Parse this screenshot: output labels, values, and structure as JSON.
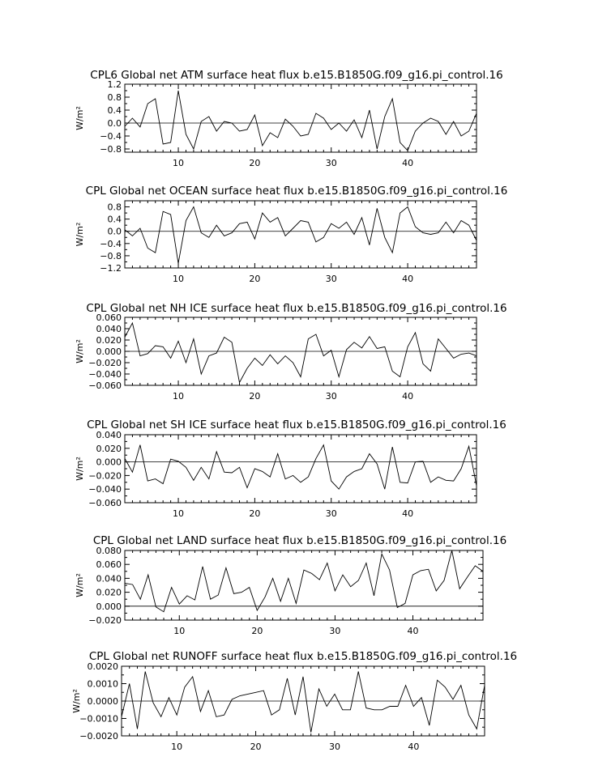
{
  "chart_data": [
    {
      "type": "line",
      "title": "CPL6 Global net ATM surface heat flux b.e15.B1850G.f09_g16.pi_control.16",
      "ylabel": "W/m²",
      "xlabel": "",
      "xlim": [
        3,
        49
      ],
      "ylim": [
        -0.9,
        1.2
      ],
      "yticks": [
        -0.8,
        -0.4,
        0.0,
        0.4,
        0.8,
        1.2
      ],
      "ytick_labels": [
        "−0.8",
        "−0.4",
        "0.0",
        "0.4",
        "0.8",
        "1.2"
      ],
      "xticks": [
        10,
        20,
        30,
        40
      ],
      "xtick_labels": [
        "10",
        "20",
        "30",
        "40"
      ],
      "zero_line": true,
      "x": [
        3,
        4,
        5,
        6,
        7,
        8,
        9,
        10,
        11,
        12,
        13,
        14,
        15,
        16,
        17,
        18,
        19,
        20,
        21,
        22,
        23,
        24,
        25,
        26,
        27,
        28,
        29,
        30,
        31,
        32,
        33,
        34,
        35,
        36,
        37,
        38,
        39,
        40,
        41,
        42,
        43,
        44,
        45,
        46,
        47,
        48,
        49
      ],
      "values": [
        -0.1,
        0.15,
        -0.12,
        0.6,
        0.75,
        -0.65,
        -0.6,
        1.0,
        -0.35,
        -0.8,
        0.05,
        0.2,
        -0.25,
        0.05,
        0.0,
        -0.25,
        -0.2,
        0.25,
        -0.7,
        -0.3,
        -0.45,
        0.12,
        -0.1,
        -0.4,
        -0.35,
        0.3,
        0.15,
        -0.2,
        0.0,
        -0.25,
        0.1,
        -0.45,
        0.4,
        -0.8,
        0.2,
        0.75,
        -0.6,
        -0.85,
        -0.25,
        0.0,
        0.15,
        0.05,
        -0.35,
        0.05,
        -0.4,
        -0.25,
        0.3
      ]
    },
    {
      "type": "line",
      "title": "CPL Global net OCEAN surface heat flux b.e15.B1850G.f09_g16.pi_control.16",
      "ylabel": "W/m²",
      "xlabel": "",
      "xlim": [
        3,
        49
      ],
      "ylim": [
        -1.2,
        1.0
      ],
      "yticks": [
        -1.2,
        -0.8,
        -0.4,
        0.0,
        0.4,
        0.8
      ],
      "ytick_labels": [
        "−1.2",
        "−0.8",
        "−0.4",
        "0.0",
        "0.4",
        "0.8"
      ],
      "xticks": [
        10,
        20,
        30,
        40
      ],
      "xtick_labels": [
        "10",
        "20",
        "30",
        "40"
      ],
      "zero_line": true,
      "x": [
        3,
        4,
        5,
        6,
        7,
        8,
        9,
        10,
        11,
        12,
        13,
        14,
        15,
        16,
        17,
        18,
        19,
        20,
        21,
        22,
        23,
        24,
        25,
        26,
        27,
        28,
        29,
        30,
        31,
        32,
        33,
        34,
        35,
        36,
        37,
        38,
        39,
        40,
        41,
        42,
        43,
        44,
        45,
        46,
        47,
        48,
        49
      ],
      "values": [
        0.05,
        -0.15,
        0.1,
        -0.55,
        -0.7,
        0.65,
        0.55,
        -1.05,
        0.35,
        0.8,
        -0.05,
        -0.2,
        0.2,
        -0.15,
        -0.05,
        0.25,
        0.3,
        -0.25,
        0.6,
        0.3,
        0.45,
        -0.15,
        0.1,
        0.35,
        0.3,
        -0.35,
        -0.2,
        0.25,
        0.1,
        0.3,
        -0.1,
        0.45,
        -0.45,
        0.75,
        -0.2,
        -0.7,
        0.6,
        0.8,
        0.15,
        -0.05,
        -0.1,
        -0.05,
        0.3,
        -0.05,
        0.35,
        0.2,
        -0.3
      ]
    },
    {
      "type": "line",
      "title": "CPL Global net NH ICE surface heat flux b.e15.B1850G.f09_g16.pi_control.16",
      "ylabel": "W/m²",
      "xlabel": "",
      "xlim": [
        3,
        49
      ],
      "ylim": [
        -0.06,
        0.06
      ],
      "yticks": [
        -0.06,
        -0.04,
        -0.02,
        0.0,
        0.02,
        0.04,
        0.06
      ],
      "ytick_labels": [
        "−0.060",
        "−0.040",
        "−0.020",
        "0.000",
        "0.020",
        "0.040",
        "0.060"
      ],
      "xticks": [
        10,
        20,
        30,
        40
      ],
      "xtick_labels": [
        "10",
        "20",
        "30",
        "40"
      ],
      "zero_line": true,
      "x": [
        3,
        4,
        5,
        6,
        7,
        8,
        9,
        10,
        11,
        12,
        13,
        14,
        15,
        16,
        17,
        18,
        19,
        20,
        21,
        22,
        23,
        24,
        25,
        26,
        27,
        28,
        29,
        30,
        31,
        32,
        33,
        34,
        35,
        36,
        37,
        38,
        39,
        40,
        41,
        42,
        43,
        44,
        45,
        46,
        47,
        48,
        49
      ],
      "values": [
        0.025,
        0.05,
        -0.008,
        -0.004,
        0.01,
        0.008,
        -0.012,
        0.018,
        -0.02,
        0.022,
        -0.04,
        -0.008,
        -0.003,
        0.025,
        0.016,
        -0.055,
        -0.03,
        -0.012,
        -0.025,
        -0.006,
        -0.022,
        -0.008,
        -0.02,
        -0.045,
        0.022,
        0.03,
        -0.008,
        0.002,
        -0.045,
        0.003,
        0.016,
        0.006,
        0.026,
        0.005,
        0.008,
        -0.035,
        -0.045,
        0.008,
        0.033,
        -0.022,
        -0.035,
        0.022,
        0.005,
        -0.012,
        -0.005,
        -0.003,
        -0.008
      ]
    },
    {
      "type": "line",
      "title": "CPL Global net SH ICE surface heat flux b.e15.B1850G.f09_g16.pi_control.16",
      "ylabel": "W/m²",
      "xlabel": "",
      "xlim": [
        3,
        49
      ],
      "ylim": [
        -0.06,
        0.04
      ],
      "yticks": [
        -0.06,
        -0.04,
        -0.02,
        0.0,
        0.02,
        0.04
      ],
      "ytick_labels": [
        "−0.060",
        "−0.040",
        "−0.020",
        "0.000",
        "0.020",
        "0.040"
      ],
      "xticks": [
        10,
        20,
        30,
        40
      ],
      "xtick_labels": [
        "10",
        "20",
        "30",
        "40"
      ],
      "zero_line": true,
      "x": [
        3,
        4,
        5,
        6,
        7,
        8,
        9,
        10,
        11,
        12,
        13,
        14,
        15,
        16,
        17,
        18,
        19,
        20,
        21,
        22,
        23,
        24,
        25,
        26,
        27,
        28,
        29,
        30,
        31,
        32,
        33,
        34,
        35,
        36,
        37,
        38,
        39,
        40,
        41,
        42,
        43,
        44,
        45,
        46,
        47,
        48,
        49
      ],
      "values": [
        0.005,
        -0.015,
        0.025,
        -0.028,
        -0.025,
        -0.032,
        0.004,
        0.001,
        -0.008,
        -0.027,
        -0.008,
        -0.025,
        0.015,
        -0.015,
        -0.016,
        -0.008,
        -0.038,
        -0.01,
        -0.014,
        -0.022,
        0.012,
        -0.025,
        -0.02,
        -0.03,
        -0.022,
        0.005,
        0.025,
        -0.028,
        -0.04,
        -0.022,
        -0.014,
        -0.01,
        0.012,
        -0.003,
        -0.04,
        0.022,
        -0.03,
        -0.031,
        0.0,
        0.001,
        -0.03,
        -0.022,
        -0.027,
        -0.028,
        -0.01,
        0.023,
        -0.035
      ]
    },
    {
      "type": "line",
      "title": "CPL Global net LAND surface heat flux b.e15.B1850G.f09_g16.pi_control.16",
      "ylabel": "W/m²",
      "xlabel": "",
      "xlim": [
        3,
        49
      ],
      "ylim": [
        -0.02,
        0.08
      ],
      "yticks": [
        -0.02,
        0.0,
        0.02,
        0.04,
        0.06,
        0.08
      ],
      "ytick_labels": [
        "−0.020",
        "0.000",
        "0.020",
        "0.040",
        "0.060",
        "0.080"
      ],
      "xticks": [
        10,
        20,
        30,
        40
      ],
      "xtick_labels": [
        "10",
        "20",
        "30",
        "40"
      ],
      "zero_line": true,
      "x": [
        3,
        4,
        5,
        6,
        7,
        8,
        9,
        10,
        11,
        12,
        13,
        14,
        15,
        16,
        17,
        18,
        19,
        20,
        21,
        22,
        23,
        24,
        25,
        26,
        27,
        28,
        29,
        30,
        31,
        32,
        33,
        34,
        35,
        36,
        37,
        38,
        39,
        40,
        41,
        42,
        43,
        44,
        45,
        46,
        47,
        48,
        49
      ],
      "values": [
        0.033,
        0.031,
        0.01,
        0.045,
        -0.001,
        -0.008,
        0.027,
        0.003,
        0.015,
        0.009,
        0.057,
        0.01,
        0.016,
        0.055,
        0.018,
        0.02,
        0.027,
        -0.006,
        0.013,
        0.04,
        0.007,
        0.04,
        0.004,
        0.052,
        0.047,
        0.038,
        0.062,
        0.022,
        0.045,
        0.028,
        0.037,
        0.062,
        0.015,
        0.075,
        0.052,
        -0.002,
        0.004,
        0.045,
        0.051,
        0.053,
        0.022,
        0.037,
        0.08,
        0.025,
        0.042,
        0.058,
        0.05
      ]
    },
    {
      "type": "line",
      "title": "CPL Global net RUNOFF surface heat flux b.e15.B1850G.f09_g16.pi_control.16",
      "ylabel": "W/m²",
      "xlabel": "",
      "xlim": [
        3,
        49
      ],
      "ylim": [
        -0.002,
        0.002
      ],
      "yticks": [
        -0.002,
        -0.001,
        0.0,
        0.001,
        0.002
      ],
      "ytick_labels": [
        "−0.0020",
        "−0.0010",
        "0.0000",
        "0.0010",
        "0.0020"
      ],
      "xticks": [
        10,
        20,
        30,
        40
      ],
      "xtick_labels": [
        "10",
        "20",
        "30",
        "40"
      ],
      "zero_line": true,
      "x": [
        3,
        4,
        5,
        6,
        7,
        8,
        9,
        10,
        11,
        12,
        13,
        14,
        15,
        16,
        17,
        18,
        19,
        20,
        21,
        22,
        23,
        24,
        25,
        26,
        27,
        28,
        29,
        30,
        31,
        32,
        33,
        34,
        35,
        36,
        37,
        38,
        39,
        40,
        41,
        42,
        43,
        44,
        45,
        46,
        47,
        48,
        49
      ],
      "values": [
        -0.0009,
        0.001,
        -0.0016,
        0.0017,
        -0.0001,
        -0.0009,
        0.0002,
        -0.0008,
        0.0008,
        0.0014,
        -0.0006,
        0.0006,
        -0.0009,
        -0.0008,
        0.0001,
        0.0003,
        0.0004,
        0.0005,
        0.0006,
        -0.0008,
        -0.0005,
        0.0013,
        -0.0008,
        0.0014,
        -0.0018,
        0.0007,
        -0.0003,
        0.0004,
        -0.0005,
        -0.0005,
        0.0017,
        -0.0004,
        -0.0005,
        -0.0005,
        -0.0003,
        -0.0003,
        0.0009,
        -0.0003,
        0.0002,
        -0.0014,
        0.0012,
        0.0008,
        0.0001,
        0.0009,
        -0.0008,
        -0.0016,
        0.0009
      ]
    }
  ]
}
